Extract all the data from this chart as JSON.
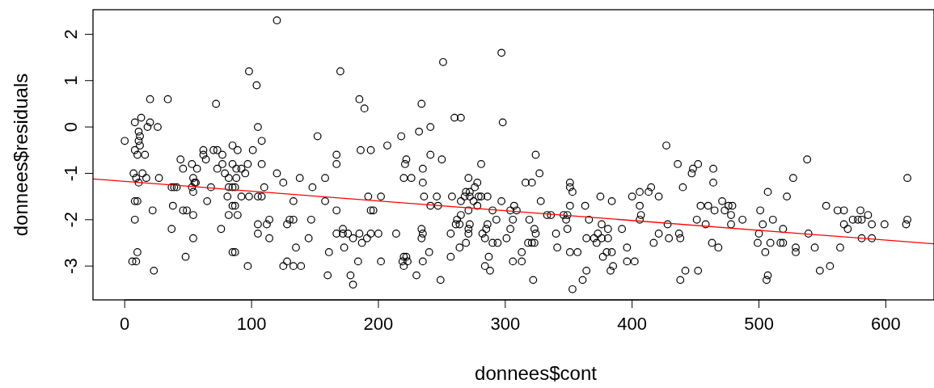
{
  "chart_data": {
    "type": "scatter",
    "xlabel": "donnees$cont",
    "ylabel": "donnees$residuals",
    "xlim": [
      -25,
      638
    ],
    "ylim": [
      -3.73,
      2.53
    ],
    "xticks": [
      0,
      100,
      200,
      300,
      400,
      500,
      600
    ],
    "yticks": [
      -3,
      -2,
      -1,
      0,
      1,
      2
    ],
    "series": [
      {
        "marker": "circle",
        "color": "#000000",
        "x": [
          0,
          8,
          13,
          20,
          20,
          34,
          18,
          26,
          11,
          12,
          11,
          12,
          8,
          10,
          16,
          7,
          9,
          11,
          14,
          17,
          27,
          8,
          10,
          8,
          22,
          10,
          6,
          9,
          23,
          37,
          39,
          41,
          38,
          37,
          44,
          46,
          53,
          57,
          54,
          55,
          56,
          53,
          54,
          46,
          49,
          54,
          54,
          48,
          62,
          62,
          64,
          70,
          73,
          72,
          77,
          73,
          77,
          79,
          68,
          65,
          82,
          85,
          85,
          82,
          85,
          81,
          85,
          82,
          76,
          85,
          89,
          88,
          92,
          88,
          87,
          87,
          89,
          87,
          97,
          95,
          101,
          92,
          98,
          105,
          108,
          98,
          104,
          105,
          108,
          108,
          110,
          105,
          112,
          105,
          114,
          114,
          97,
          120,
          120,
          125,
          138,
          133,
          128,
          130,
          133,
          128,
          125,
          133,
          139,
          135,
          152,
          148,
          147,
          145,
          158,
          158,
          161,
          160,
          170,
          167,
          167,
          167,
          167,
          172,
          172,
          176,
          180,
          173,
          178,
          180,
          185,
          189,
          186,
          194,
          192,
          194,
          196,
          185,
          187,
          191,
          194,
          184,
          202,
          200,
          202,
          207,
          214,
          218,
          221,
          222,
          220,
          226,
          220,
          222,
          219,
          223,
          220,
          230,
          232,
          234,
          241,
          241,
          235,
          235,
          236,
          241,
          234,
          235,
          234,
          240,
          235,
          251,
          260,
          265,
          250,
          246,
          247,
          249,
          258,
          257,
          257,
          265,
          265,
          262,
          261,
          264,
          264,
          269,
          271,
          269,
          272,
          268,
          272,
          271,
          272,
          271,
          271,
          278,
          276,
          275,
          278,
          279,
          281,
          286,
          281,
          282,
          284,
          285,
          286,
          287,
          284,
          288,
          290,
          293,
          290,
          294,
          297,
          298,
          297,
          301,
          304,
          306,
          307,
          304,
          309,
          306,
          313,
          313,
          316,
          321,
          324,
          327,
          328,
          319,
          323,
          324,
          318,
          321,
          323,
          322,
          333,
          336,
          340,
          341,
          346,
          349,
          348,
          349,
          351,
          351,
          353,
          351,
          351,
          357,
          353,
          361,
          364,
          363,
          366,
          364,
          370,
          373,
          372,
          376,
          375,
          376,
          381,
          381,
          377,
          380,
          384,
          383,
          385,
          384,
          392,
          396,
          396,
          402,
          400,
          406,
          406,
          407,
          406,
          413,
          415,
          421,
          421,
          417,
          427,
          428,
          429,
          436,
          440,
          437,
          438,
          442,
          438,
          447,
          448,
          452,
          451,
          452,
          454,
          458,
          460,
          464,
          464,
          465,
          463,
          468,
          471,
          473,
          476,
          479,
          478,
          478,
          487,
          501,
          500,
          499,
          503,
          505,
          507,
          507,
          506,
          511,
          509,
          519,
          517,
          519,
          522,
          527,
          529,
          529,
          538,
          539,
          544,
          548,
          556,
          553,
          562,
          567,
          564,
          567,
          570,
          574,
          578,
          581,
          580,
          586,
          581,
          589,
          589,
          599,
          617,
          617,
          616
        ],
        "values": [
          -0.3,
          0.1,
          0.2,
          0.6,
          0.1,
          0.6,
          0.0,
          0.0,
          -0.1,
          -0.2,
          -0.3,
          -0.4,
          -0.5,
          -0.6,
          -0.6,
          -1.0,
          -1.1,
          -1.2,
          -1.0,
          -1.1,
          -1.1,
          -1.6,
          -1.6,
          -2.0,
          -1.8,
          -2.7,
          -2.9,
          -2.9,
          -3.1,
          -1.3,
          -1.3,
          -1.3,
          -1.7,
          -2.2,
          -0.7,
          -0.9,
          -0.8,
          -0.9,
          -1.1,
          -1.2,
          -1.2,
          -1.3,
          -1.4,
          -1.8,
          -1.8,
          -1.9,
          -2.4,
          -2.8,
          -0.5,
          -0.6,
          -0.7,
          -0.5,
          -0.5,
          0.5,
          -0.6,
          -0.9,
          -0.8,
          -1.0,
          -1.3,
          -1.6,
          -1.1,
          -0.4,
          -0.8,
          -1.3,
          -1.3,
          -1.5,
          -1.7,
          -1.9,
          -2.2,
          -2.7,
          -0.5,
          -0.9,
          -0.9,
          -1.1,
          -1.3,
          -1.7,
          -1.9,
          -2.7,
          -0.8,
          -1.0,
          -0.5,
          -1.5,
          -1.5,
          -1.5,
          -1.5,
          1.2,
          0.9,
          0.0,
          -0.3,
          -0.8,
          -1.3,
          -2.1,
          -2.1,
          -2.3,
          -2.0,
          -2.4,
          -3.0,
          2.3,
          -1.0,
          -1.2,
          -1.1,
          -1.6,
          -2.1,
          -2.0,
          -2.0,
          -2.9,
          -3.0,
          -3.0,
          -3.0,
          -2.6,
          -0.2,
          -1.3,
          -2.0,
          -2.4,
          -1.1,
          -1.6,
          -2.7,
          -3.2,
          1.2,
          -0.6,
          -0.8,
          -1.8,
          -2.3,
          -2.2,
          -2.3,
          -2.3,
          -2.4,
          -2.6,
          -3.2,
          -3.4,
          0.6,
          0.4,
          -0.5,
          -0.5,
          -1.5,
          -1.8,
          -1.8,
          -2.3,
          -2.5,
          -2.4,
          -2.3,
          -2.9,
          -1.5,
          -2.3,
          -2.9,
          -0.4,
          -2.3,
          -0.2,
          -0.8,
          -0.7,
          -1.1,
          -1.1,
          -2.8,
          -2.8,
          -2.9,
          -2.9,
          -3.0,
          -3.2,
          -0.1,
          0.5,
          0.0,
          -0.6,
          -0.9,
          -1.2,
          -1.5,
          -1.7,
          -2.2,
          -2.3,
          -2.4,
          -2.7,
          -2.9,
          1.4,
          0.2,
          0.2,
          -0.7,
          -1.5,
          -1.7,
          -3.3,
          -1.5,
          -2.3,
          -2.8,
          -1.6,
          -1.9,
          -2.0,
          -2.1,
          -2.1,
          -2.6,
          -2.5,
          -1.1,
          -1.4,
          -1.4,
          -1.5,
          -1.5,
          -1.8,
          -2.1,
          -2.2,
          -2.3,
          -1.2,
          -1.3,
          -1.6,
          -1.7,
          -1.5,
          -1.5,
          -1.5,
          -0.8,
          -2.3,
          -2.4,
          -2.2,
          -2.1,
          -2.8,
          -3.0,
          -3.1,
          -1.8,
          -2.0,
          -2.5,
          -2.5,
          1.6,
          0.1,
          -1.6,
          -2.4,
          -2.2,
          -2.0,
          -1.7,
          -1.8,
          -1.8,
          -2.9,
          -2.7,
          -2.9,
          -1.2,
          -1.2,
          -0.6,
          -1.0,
          -1.6,
          -2.0,
          -2.2,
          -2.3,
          -2.5,
          -2.5,
          -2.5,
          -3.3,
          -1.9,
          -1.9,
          -2.3,
          -2.6,
          -1.9,
          -1.9,
          -2.0,
          -2.2,
          -1.2,
          -1.3,
          -1.4,
          -1.7,
          -2.7,
          -2.7,
          -3.5,
          -3.3,
          -3.1,
          -1.7,
          -2.0,
          -2.4,
          -2.4,
          -2.3,
          -2.5,
          -2.4,
          -1.5,
          -2.1,
          -2.2,
          -2.4,
          -2.8,
          -2.7,
          -2.7,
          -3.1,
          -3.0,
          -1.6,
          -2.2,
          -2.6,
          -2.9,
          -2.9,
          -1.5,
          -1.4,
          -1.7,
          -1.9,
          -2.0,
          -1.4,
          -1.3,
          -1.5,
          -2.3,
          -2.5,
          -0.4,
          -2.1,
          -2.4,
          -0.8,
          -1.3,
          -2.3,
          -2.4,
          -3.1,
          -3.3,
          -1.0,
          -0.9,
          -0.8,
          -2.0,
          -3.1,
          -1.7,
          -2.1,
          -1.7,
          -0.9,
          -1.2,
          -1.8,
          -2.5,
          -2.6,
          -1.6,
          -1.8,
          -1.7,
          -1.7,
          -1.9,
          -2.1,
          -2.0,
          -1.8,
          -2.3,
          -2.5,
          -2.1,
          -2.7,
          -1.4,
          -3.2,
          -3.3,
          -2.0,
          -2.5,
          -2.2,
          -2.5,
          -2.5,
          -1.5,
          -1.1,
          -2.6,
          -2.7,
          -0.7,
          -2.3,
          -2.6,
          -3.1,
          -3.0,
          -1.7,
          -1.8,
          -1.8,
          -2.6,
          -2.1,
          -2.2,
          -2.0,
          -2.0,
          -2.0,
          -1.8,
          -1.9,
          -2.4,
          -2.4,
          -2.1,
          -2.1,
          -1.1,
          -2.0,
          -2.1
        ]
      },
      {
        "type": "line",
        "marker": "none",
        "color": "#ff0000",
        "x": [
          -25,
          638
        ],
        "values": [
          -1.12,
          -2.52
        ]
      }
    ]
  }
}
